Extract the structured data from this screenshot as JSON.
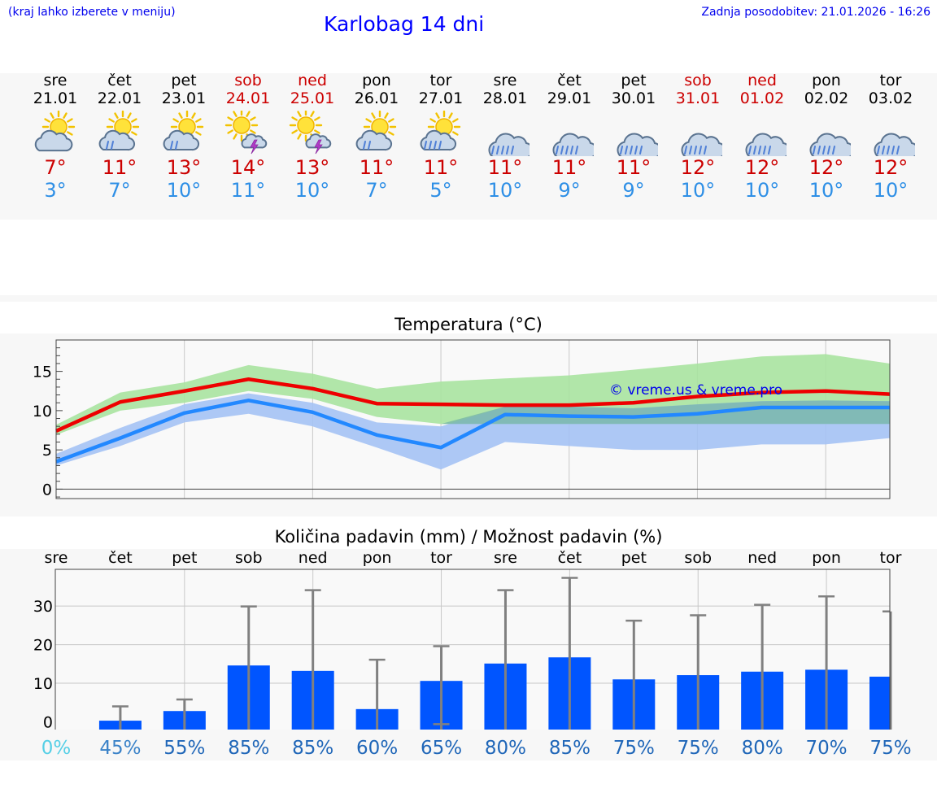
{
  "header": {
    "left_note": "(kraj lahko izberete v meniju)",
    "title": "Karlobag 14 dni",
    "updated": "Zadnja posodobitev: 21.01.2026 - 16:26"
  },
  "colors": {
    "max": "#cc0000",
    "min": "#2e8fe6",
    "bar": "#0055ff",
    "link": "#0000ee"
  },
  "days": [
    {
      "name": "sre",
      "date": "21.01",
      "weekend": false,
      "icon": "partly-cloudy-icon",
      "tmax": "7°",
      "tmin": "3°"
    },
    {
      "name": "čet",
      "date": "22.01",
      "weekend": false,
      "icon": "partly-cloudy-rain-icon",
      "tmax": "11°",
      "tmin": "7°"
    },
    {
      "name": "pet",
      "date": "23.01",
      "weekend": false,
      "icon": "partly-cloudy-rain-icon",
      "tmax": "13°",
      "tmin": "10°"
    },
    {
      "name": "sob",
      "date": "24.01",
      "weekend": true,
      "icon": "sun-thunderstorm-icon",
      "tmax": "14°",
      "tmin": "11°"
    },
    {
      "name": "ned",
      "date": "25.01",
      "weekend": true,
      "icon": "sun-thunderstorm-icon",
      "tmax": "13°",
      "tmin": "10°"
    },
    {
      "name": "pon",
      "date": "26.01",
      "weekend": false,
      "icon": "partly-cloudy-rain-icon",
      "tmax": "11°",
      "tmin": "7°"
    },
    {
      "name": "tor",
      "date": "27.01",
      "weekend": false,
      "icon": "partly-cloudy-heavy-rain-icon",
      "tmax": "11°",
      "tmin": "5°"
    },
    {
      "name": "sre",
      "date": "28.01",
      "weekend": false,
      "icon": "cloud-rain-icon",
      "tmax": "11°",
      "tmin": "10°"
    },
    {
      "name": "čet",
      "date": "29.01",
      "weekend": false,
      "icon": "cloud-rain-icon",
      "tmax": "11°",
      "tmin": "9°"
    },
    {
      "name": "pet",
      "date": "30.01",
      "weekend": false,
      "icon": "cloud-rain-icon",
      "tmax": "11°",
      "tmin": "9°"
    },
    {
      "name": "sob",
      "date": "31.01",
      "weekend": true,
      "icon": "cloud-rain-icon",
      "tmax": "12°",
      "tmin": "10°"
    },
    {
      "name": "ned",
      "date": "01.02",
      "weekend": true,
      "icon": "cloud-rain-icon",
      "tmax": "12°",
      "tmin": "10°"
    },
    {
      "name": "pon",
      "date": "02.02",
      "weekend": false,
      "icon": "cloud-rain-icon",
      "tmax": "12°",
      "tmin": "10°"
    },
    {
      "name": "tor",
      "date": "03.02",
      "weekend": false,
      "icon": "cloud-rain-icon",
      "tmax": "12°",
      "tmin": "10°"
    }
  ],
  "chart_data": [
    {
      "type": "line",
      "title": "Temperatura (°C)",
      "watermark": "© vreme.us & vreme.pro",
      "x_points": [
        0,
        1,
        2,
        3,
        4,
        5,
        6,
        7,
        8,
        9,
        10,
        11,
        12,
        13
      ],
      "ylim": [
        -1.2,
        19
      ],
      "yticks": [
        0,
        5,
        10,
        15
      ],
      "grid": true,
      "series": [
        {
          "name": "max",
          "color": "#ee0000",
          "values": [
            7.4,
            11.1,
            12.5,
            14.0,
            12.8,
            10.9,
            10.8,
            10.7,
            10.7,
            11.0,
            11.8,
            12.3,
            12.5,
            12.1
          ]
        },
        {
          "name": "min",
          "color": "#2288ff",
          "values": [
            3.5,
            6.5,
            9.7,
            11.3,
            9.8,
            6.9,
            5.3,
            9.5,
            9.3,
            9.2,
            9.6,
            10.4,
            10.4,
            10.4
          ]
        }
      ],
      "bands": [
        {
          "name": "max-range",
          "color": "#a9e3a0",
          "low": [
            6.9,
            10.0,
            11.0,
            12.5,
            11.5,
            9.2,
            8.3,
            8.3,
            8.3,
            8.3,
            8.3,
            8.3,
            8.3,
            8.3
          ],
          "high": [
            8.2,
            12.3,
            13.6,
            15.8,
            14.7,
            12.8,
            13.7,
            14.1,
            14.5,
            15.2,
            16.0,
            16.9,
            17.2,
            16.0
          ]
        },
        {
          "name": "min-range",
          "color": "#a4c2f4",
          "low": [
            3.0,
            5.5,
            8.5,
            9.6,
            8.0,
            5.3,
            2.5,
            6.0,
            5.5,
            5.0,
            5.0,
            5.7,
            5.7,
            6.5
          ],
          "high": [
            4.5,
            7.8,
            10.8,
            12.2,
            11.0,
            8.5,
            8.0,
            10.5,
            10.5,
            10.3,
            10.8,
            11.2,
            11.3,
            11.2
          ]
        }
      ]
    },
    {
      "type": "bar",
      "title": "Količina padavin (mm) / Možnost padavin (%)",
      "categories": [
        "sre",
        "čet",
        "pet",
        "sob",
        "ned",
        "pon",
        "tor",
        "sre",
        "čet",
        "pet",
        "sob",
        "ned",
        "pon",
        "tor"
      ],
      "values": [
        0,
        0.3,
        2.8,
        14.6,
        13.2,
        3.3,
        10.6,
        15.1,
        16.7,
        11.0,
        12.1,
        13.0,
        13.5,
        11.7
      ],
      "error_high": [
        0,
        4.0,
        5.8,
        29.9,
        34.1,
        16.1,
        19.6,
        34.1,
        37.3,
        26.2,
        27.6,
        30.3,
        32.5,
        28.6
      ],
      "error_low": [
        0,
        0,
        0,
        0,
        0,
        0,
        -0.6,
        0,
        0,
        0,
        0,
        0,
        0,
        0
      ],
      "ylim": [
        -2,
        39.5
      ],
      "yticks": [
        0,
        10,
        20,
        30
      ],
      "probability": [
        "0%",
        "45%",
        "55%",
        "85%",
        "85%",
        "60%",
        "65%",
        "80%",
        "85%",
        "75%",
        "75%",
        "80%",
        "70%",
        "75%"
      ],
      "probability_colors": [
        "#55cfe6",
        "#3a82c8",
        "#1f66b8",
        "#1f66b8",
        "#1f66b8",
        "#1f66b8",
        "#1f66b8",
        "#1f66b8",
        "#1f66b8",
        "#1f66b8",
        "#1f66b8",
        "#1f66b8",
        "#1f66b8",
        "#1f66b8"
      ]
    }
  ]
}
